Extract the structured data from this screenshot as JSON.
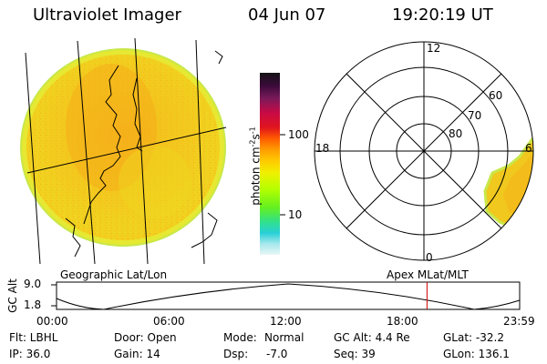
{
  "header": {
    "instrument": "Ultraviolet Imager",
    "date": "04 Jun 07",
    "time": "19:20:19 UT"
  },
  "left_panel": {
    "label": "Geographic Lat/Lon"
  },
  "colorbar": {
    "unit_label": "photon cm",
    "unit_sup1": "-2",
    "unit_mid": "s",
    "unit_sup2": "-1",
    "ticks": [
      "100",
      "10"
    ],
    "scale": "log",
    "colors": [
      "#141414",
      "#5a0c3c",
      "#8a1e5a",
      "#b0107a",
      "#c80a46",
      "#e0141e",
      "#ff4a00",
      "#ff8c00",
      "#ffb400",
      "#ffe000",
      "#d8ff00",
      "#8cff00",
      "#46ee3c",
      "#28e8a0",
      "#28d8d8",
      "#aaecec",
      "#d8f4f4"
    ]
  },
  "right_panel": {
    "label": "Apex MLat/MLT",
    "mlt_labels": {
      "top": "12",
      "left": "18",
      "right": "6",
      "bottom": "0"
    },
    "lat_labels": [
      "60",
      "70",
      "80"
    ]
  },
  "altitude_plot": {
    "axis_label": "GC Alt",
    "y_ticks": [
      "9.0",
      "1.8"
    ],
    "x_ticks": [
      "00:00",
      "06:00",
      "12:00",
      "18:00",
      "23:59"
    ],
    "current_time_fraction": 0.8
  },
  "info": {
    "filter": "Flt: LBHL",
    "ip": "IP: 36.0",
    "door": "Door: Open",
    "gain": "Gain: 14",
    "mode_label": "Mode:",
    "mode_value": "Normal",
    "dsp_label": "Dsp:",
    "dsp_value": "-7.0",
    "gc_alt": "GC Alt: 4.4 Re",
    "seq": "Seq: 39",
    "glat": "GLat: -32.2",
    "glon": "GLon: 136.1"
  }
}
